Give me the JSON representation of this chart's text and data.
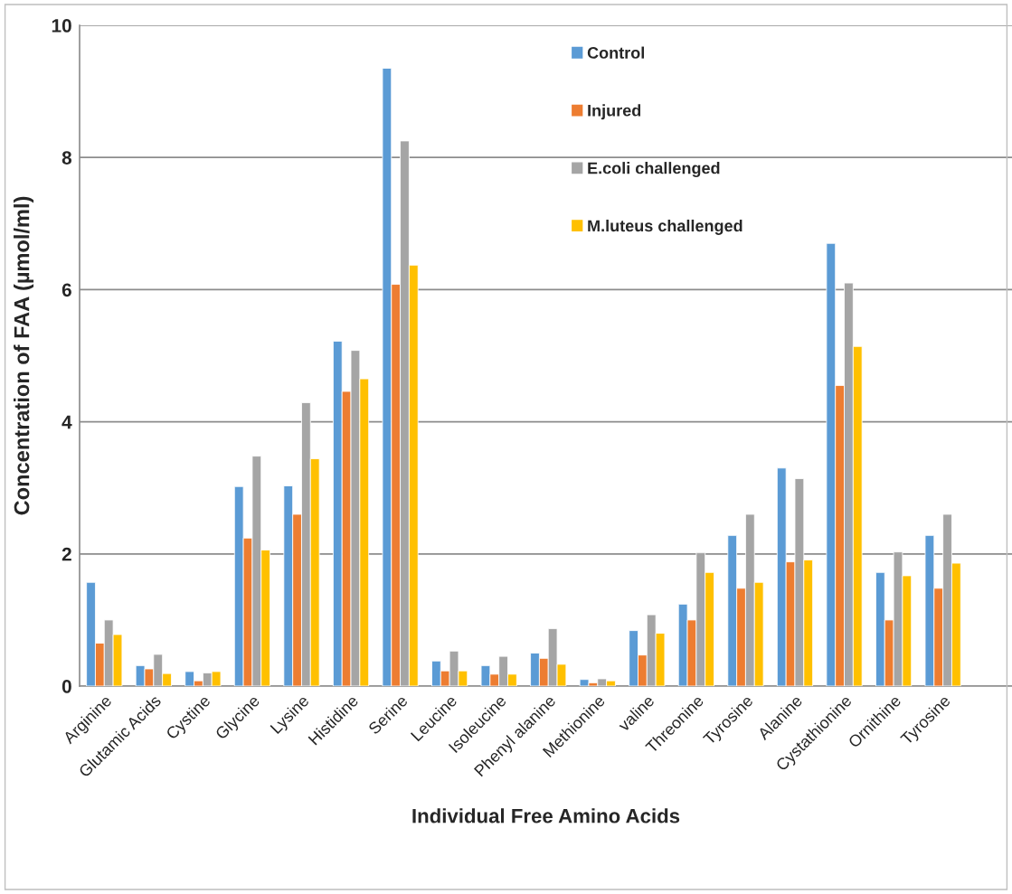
{
  "chart_data": {
    "type": "bar",
    "xlabel": "Individual Free Amino Acids",
    "ylabel": "Concentration of FAA (µmol/ml)",
    "categories": [
      "Arginine",
      "Glutamic Acids",
      "Cystine",
      "Glycine",
      "Lysine",
      "Histidine",
      "Serine",
      "Leucine",
      "Isoleucine",
      "Phenyl alanine",
      "Methionine",
      "valine",
      "Threonine",
      "Tyrosine",
      "Alanine",
      "Cystathionine",
      "Ornithine",
      "Tyrosine"
    ],
    "series": [
      {
        "name": "Control",
        "color": "#5b9bd5",
        "values": [
          1.57,
          0.31,
          0.22,
          3.02,
          3.03,
          5.22,
          9.35,
          0.38,
          0.31,
          0.5,
          0.1,
          0.84,
          1.24,
          2.28,
          3.3,
          6.7,
          1.72,
          2.28
        ]
      },
      {
        "name": "Injured",
        "color": "#ed7d31",
        "values": [
          0.65,
          0.26,
          0.08,
          2.24,
          2.6,
          4.46,
          6.08,
          0.23,
          0.18,
          0.42,
          0.05,
          0.47,
          1.0,
          1.48,
          1.88,
          4.55,
          1.0,
          1.48
        ]
      },
      {
        "name": "E.coli challenged",
        "color": "#a5a5a5",
        "values": [
          1.0,
          0.48,
          0.2,
          3.48,
          4.29,
          5.08,
          8.25,
          0.53,
          0.45,
          0.87,
          0.11,
          1.08,
          2.02,
          2.6,
          3.14,
          6.1,
          2.03,
          2.6
        ]
      },
      {
        "name": "M.luteus challenged",
        "color": "#ffc000",
        "values": [
          0.78,
          0.19,
          0.22,
          2.06,
          3.44,
          4.65,
          6.37,
          0.23,
          0.18,
          0.33,
          0.08,
          0.8,
          1.72,
          1.57,
          1.91,
          5.14,
          1.67,
          1.86
        ]
      }
    ],
    "ylim": [
      0,
      10
    ],
    "yticks": [
      0,
      2,
      4,
      6,
      8,
      10
    ],
    "grid": "y",
    "legend": "top"
  }
}
